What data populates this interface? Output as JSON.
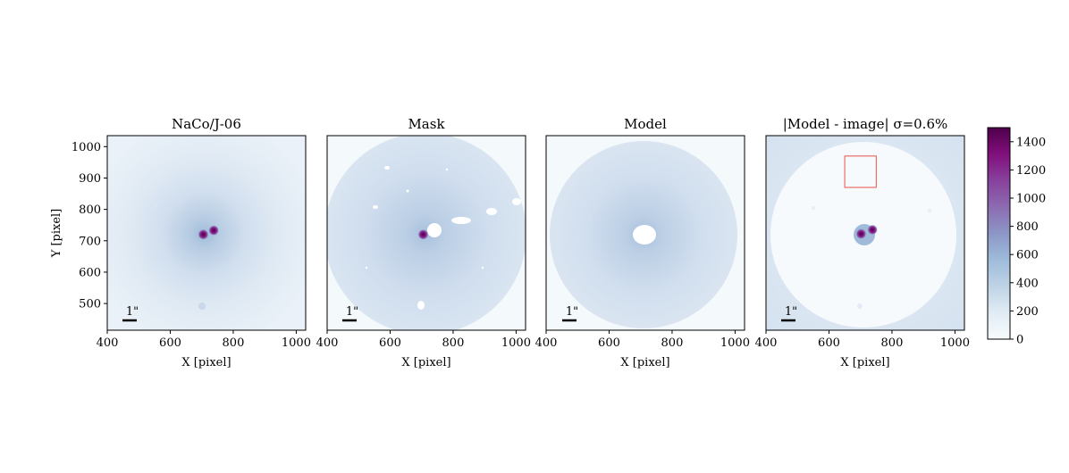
{
  "figure": {
    "colorscale": {
      "ticks": [
        0,
        200,
        400,
        600,
        800,
        1000,
        1200,
        1400
      ],
      "range": [
        0,
        1500
      ],
      "colors": [
        "#f7fcfd",
        "#e0ecf4",
        "#bfd3e6",
        "#9ebcda",
        "#8c96c6",
        "#8c6bb1",
        "#88419d",
        "#810f7c",
        "#4d004b"
      ]
    },
    "scale_bar_label": "1\"",
    "annotation_box_color": "#e8524a"
  },
  "chart_data": [
    {
      "type": "heatmap",
      "title": "NaCo/J-06",
      "xlabel": "X [pixel]",
      "ylabel": "Y [pixel]",
      "xlim": [
        400,
        1030
      ],
      "ylim": [
        415,
        1035
      ],
      "xticks": [
        400,
        600,
        800,
        1000
      ],
      "yticks": [
        500,
        600,
        700,
        800,
        900,
        1000
      ],
      "scale_bar": "1\"",
      "sources": [
        {
          "x": 705,
          "y": 720,
          "peak": 1450
        },
        {
          "x": 738,
          "y": 733,
          "peak": 1400
        }
      ]
    },
    {
      "type": "heatmap",
      "title": "Mask",
      "xlabel": "X [pixel]",
      "xlim": [
        400,
        1030
      ],
      "ylim": [
        415,
        1035
      ],
      "xticks": [
        400,
        600,
        800,
        1000
      ],
      "scale_bar": "1\"",
      "sources": [
        {
          "x": 705,
          "y": 720,
          "peak": 1450
        }
      ]
    },
    {
      "type": "heatmap",
      "title": "Model",
      "xlabel": "X [pixel]",
      "xlim": [
        400,
        1030
      ],
      "ylim": [
        415,
        1035
      ],
      "xticks": [
        400,
        600,
        800,
        1000
      ],
      "scale_bar": "1\""
    },
    {
      "type": "heatmap",
      "title": "|Model - image| σ=0.6%",
      "xlabel": "X [pixel]",
      "xlim": [
        400,
        1030
      ],
      "ylim": [
        415,
        1035
      ],
      "xticks": [
        400,
        600,
        800,
        1000
      ],
      "scale_bar": "1\"",
      "sources": [
        {
          "x": 702,
          "y": 722,
          "peak": 1450
        },
        {
          "x": 738,
          "y": 735,
          "peak": 1300
        }
      ],
      "annotation_box": {
        "x0": 650,
        "x1": 750,
        "y0": 870,
        "y1": 970
      }
    }
  ]
}
